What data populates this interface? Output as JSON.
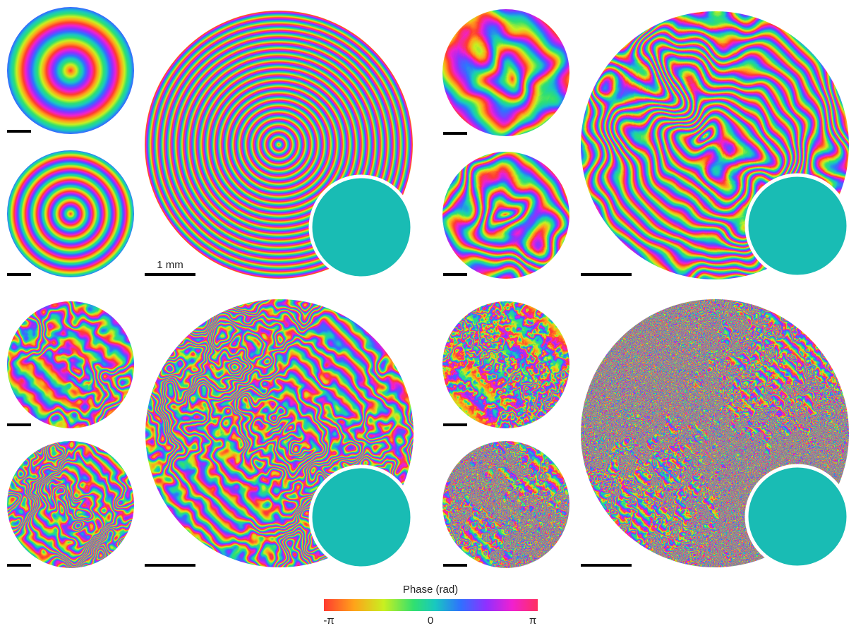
{
  "scale_label": "1 mm",
  "colorbar": {
    "title": "Phase (rad)",
    "ticks": [
      "-π",
      "0",
      "π"
    ]
  }
}
